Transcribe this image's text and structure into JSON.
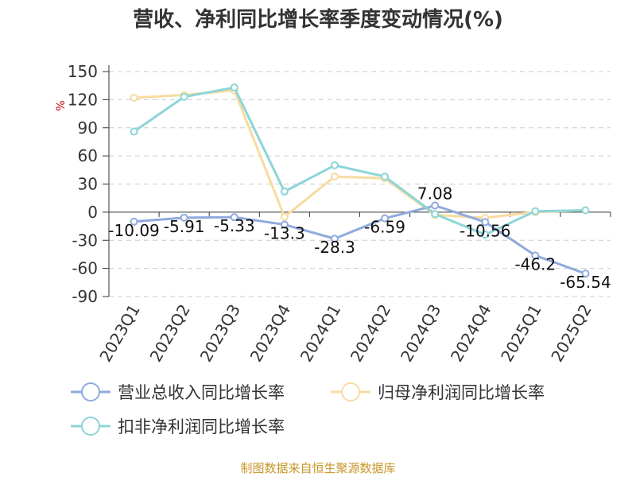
{
  "chart_data": {
    "type": "line",
    "title": "营收、净利同比增长率季度变动情况(%)",
    "ylabel": "%",
    "ylim": [
      -90,
      150
    ],
    "yticks": [
      150,
      120,
      90,
      60,
      30,
      0,
      -30,
      -60,
      -90
    ],
    "grid": true,
    "legend_position": "bottom",
    "categories": [
      "2023Q1",
      "2023Q2",
      "2023Q3",
      "2023Q4",
      "2024Q1",
      "2024Q2",
      "2024Q3",
      "2024Q4",
      "2025Q1",
      "2025Q2"
    ],
    "series": [
      {
        "name": "营业总收入同比增长率",
        "color": "#8faadc",
        "values": [
          -10.09,
          -5.91,
          -5.33,
          -13.3,
          -28.3,
          -6.59,
          7.08,
          -10.56,
          -46.2,
          -65.54
        ],
        "labels": [
          "-10.09",
          "-5.91",
          "-5.33",
          "-13.3",
          "-28.3",
          "-6.59",
          "7.08",
          "-10.56",
          "-46.2",
          "-65.54"
        ]
      },
      {
        "name": "归母净利润同比增长率",
        "color": "#f8dba0",
        "values": [
          122,
          125,
          130,
          -5,
          38,
          36,
          -3,
          -6,
          0,
          2
        ]
      },
      {
        "name": "扣非净利润同比增长率",
        "color": "#8cd5d8",
        "values": [
          86,
          123,
          133,
          22,
          50,
          38,
          -2,
          -24,
          1,
          2
        ]
      }
    ],
    "source": "制图数据来自恒生聚源数据库"
  }
}
